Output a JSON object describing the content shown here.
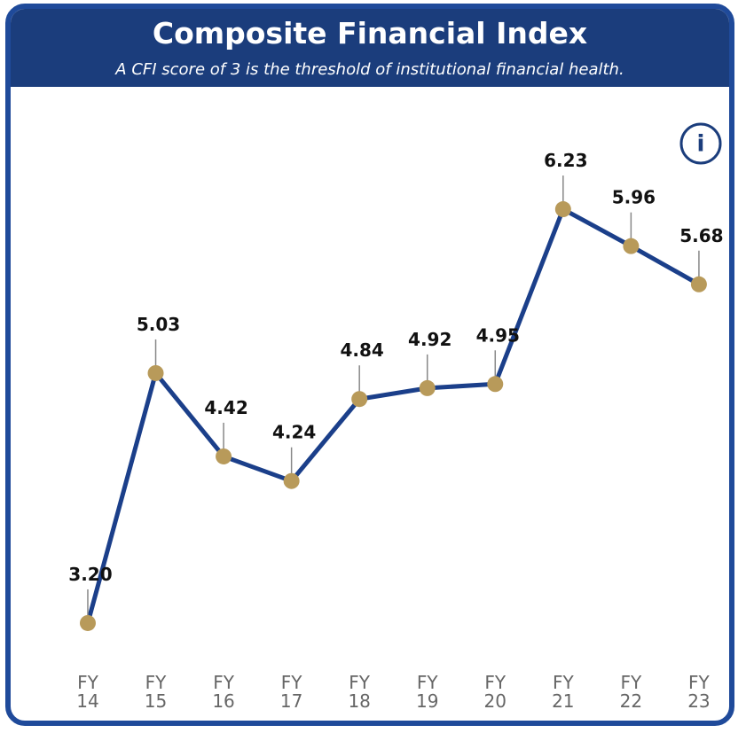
{
  "chart_data": {
    "type": "line",
    "title": "Composite Financial Index",
    "subtitle": "A CFI score of 3 is the threshold of institutional financial health.",
    "categories": [
      "FY 14",
      "FY 15",
      "FY 16",
      "FY 17",
      "FY 18",
      "FY 19",
      "FY 20",
      "FY 21",
      "FY 22",
      "FY 23"
    ],
    "series": [
      {
        "color": "#1b3f8a",
        "values": [
          3.2,
          5.03,
          4.42,
          4.24,
          4.84,
          4.92,
          4.95,
          6.23,
          5.96,
          5.68
        ],
        "value_labels": [
          "3.20",
          "5.03",
          "4.42",
          "4.24",
          "4.84",
          "4.92",
          "4.95",
          "6.23",
          "5.96",
          "5.68"
        ]
      }
    ],
    "marker_color": "#b89a5a",
    "ylim": [
      2.8,
      6.7
    ]
  },
  "info_icon": "i"
}
